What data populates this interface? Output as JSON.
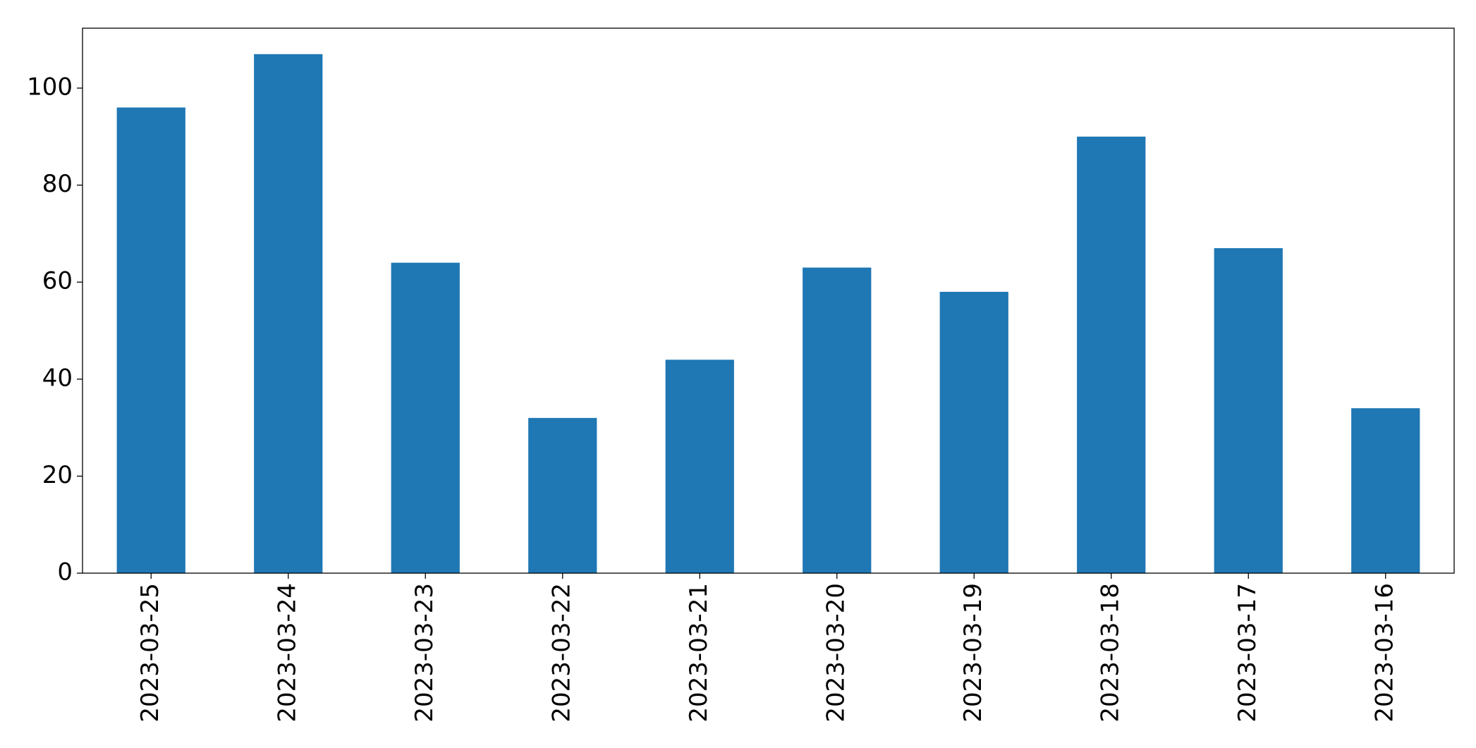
{
  "chart_data": {
    "type": "bar",
    "categories": [
      "2023-03-25",
      "2023-03-24",
      "2023-03-23",
      "2023-03-22",
      "2023-03-21",
      "2023-03-20",
      "2023-03-19",
      "2023-03-18",
      "2023-03-17",
      "2023-03-16"
    ],
    "values": [
      96,
      107,
      64,
      32,
      44,
      63,
      58,
      90,
      67,
      34
    ],
    "color": "#1f77b4",
    "ylim": [
      0,
      112.35
    ],
    "yticks": [
      0,
      20,
      40,
      60,
      80,
      100
    ],
    "grid": false
  }
}
